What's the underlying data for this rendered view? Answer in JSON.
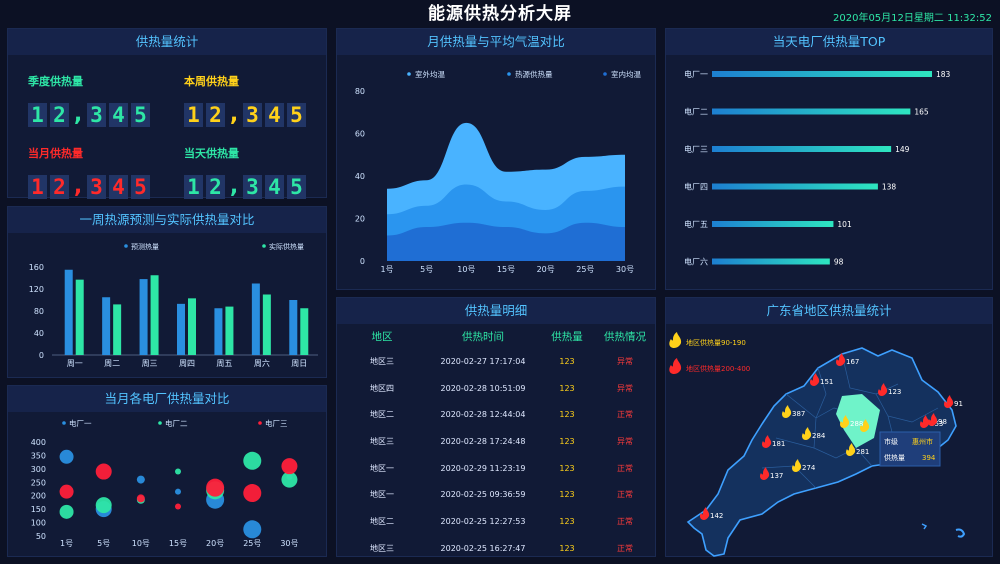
{
  "header": {
    "title": "能源供热分析大屏",
    "datetime": "2020年05月12日星期二 11:32:52"
  },
  "stats": {
    "title": "供热量统计",
    "items": [
      {
        "label": "季度供热量",
        "digits": [
          "1",
          "2",
          ",",
          "3",
          "4",
          "5"
        ],
        "color": "#2ee6a6",
        "digit_color": "#2ee6a6"
      },
      {
        "label": "本周供热量",
        "digits": [
          "1",
          "2",
          ",",
          "3",
          "4",
          "5"
        ],
        "color": "#ffd11a",
        "digit_color": "#ffd11a"
      },
      {
        "label": "当月供热量",
        "digits": [
          "1",
          "2",
          ",",
          "3",
          "4",
          "5"
        ],
        "color": "#ff2a2a",
        "digit_color": "#ff2a2a"
      },
      {
        "label": "当天供热量",
        "digits": [
          "1",
          "2",
          ",",
          "3",
          "4",
          "5"
        ],
        "color": "#2ee6a6",
        "digit_color": "#2ee6a6"
      }
    ]
  },
  "weekly": {
    "title": "一周热源预测与实际供热量对比"
  },
  "monthly_plant": {
    "title": "当月各电厂供热量对比"
  },
  "area": {
    "title": "月供热量与平均气温对比"
  },
  "top": {
    "title": "当天电厂供热量TOP"
  },
  "detail": {
    "title": "供热量明细",
    "headers": [
      "地区",
      "供热时间",
      "供热量",
      "供热情况"
    ],
    "rows": [
      [
        "地区三",
        "2020-02-27 17:17:04",
        "123",
        "异常"
      ],
      [
        "地区四",
        "2020-02-28 10:51:09",
        "123",
        "异常"
      ],
      [
        "地区二",
        "2020-02-28 12:44:04",
        "123",
        "正常"
      ],
      [
        "地区三",
        "2020-02-28 17:24:48",
        "123",
        "异常"
      ],
      [
        "地区一",
        "2020-02-29 11:23:19",
        "123",
        "正常"
      ],
      [
        "地区一",
        "2020-02-25 09:36:59",
        "123",
        "正常"
      ],
      [
        "地区二",
        "2020-02-25 12:27:53",
        "123",
        "正常"
      ],
      [
        "地区三",
        "2020-02-25 16:27:47",
        "123",
        "正常"
      ]
    ],
    "colors": {
      "normal": "#ff3b3b",
      "abnormal": "#ff3b3b",
      "value": "#ffd11a"
    }
  },
  "map": {
    "title": "广东省地区供热量统计",
    "legend": [
      {
        "label": "地区供热量90-190",
        "color": "#ffd11a",
        "icon": "flame-icon"
      },
      {
        "label": "地区供热量200-400",
        "color": "#ff2a2a",
        "icon": "flame-icon"
      }
    ],
    "tooltip": {
      "k1": "市级",
      "v1": "惠州市",
      "k2": "供热量",
      "v2": "394"
    },
    "markers": [
      {
        "v": "167",
        "c": "#ff2a2a"
      },
      {
        "v": "151",
        "c": "#ff2a2a"
      },
      {
        "v": "123",
        "c": "#ff2a2a"
      },
      {
        "v": "387",
        "c": "#ffd11a"
      },
      {
        "v": "288",
        "c": "#ffd11a"
      },
      {
        "v": "91",
        "c": "#ff2a2a"
      },
      {
        "v": "353",
        "c": "#ff2a2a"
      },
      {
        "v": "98",
        "c": "#ff2a2a"
      },
      {
        "v": "284",
        "c": "#ffd11a"
      },
      {
        "v": "181",
        "c": "#ff2a2a"
      },
      {
        "v": "274",
        "c": "#ffd11a"
      },
      {
        "v": "137",
        "c": "#ff2a2a"
      },
      {
        "v": "281",
        "c": "#ffd11a"
      },
      {
        "v": "142",
        "c": "#ff2a2a"
      },
      {
        "v": "394",
        "c": "#ffd11a"
      }
    ]
  },
  "chart_data": [
    {
      "type": "bar",
      "title": "一周热源预测与实际供热量对比",
      "categories": [
        "周一",
        "周二",
        "周三",
        "周四",
        "周五",
        "周六",
        "周日"
      ],
      "series": [
        {
          "name": "预测热量",
          "color": "#2a8fe0",
          "values": [
            155,
            105,
            138,
            93,
            85,
            130,
            100
          ]
        },
        {
          "name": "实际供热量",
          "color": "#2ee6a6",
          "values": [
            137,
            92,
            145,
            103,
            88,
            110,
            85
          ]
        }
      ],
      "ylim": [
        0,
        160
      ],
      "yticks": [
        0,
        40,
        80,
        120,
        160
      ],
      "legend_position": "top"
    },
    {
      "type": "scatter",
      "title": "当月各电厂供热量对比",
      "categories": [
        "1号",
        "5号",
        "10号",
        "15号",
        "20号",
        "25号",
        "30号"
      ],
      "series": [
        {
          "name": "电厂一",
          "color": "#2a8fe0",
          "values": [
            345,
            150,
            260,
            215,
            185,
            75,
            270
          ],
          "sizes": [
            12,
            14,
            6,
            4,
            16,
            16,
            4
          ]
        },
        {
          "name": "电厂二",
          "color": "#2ee6a6",
          "values": [
            140,
            165,
            185,
            290,
            220,
            330,
            260
          ],
          "sizes": [
            12,
            14,
            6,
            4,
            16,
            16,
            14
          ]
        },
        {
          "name": "电厂三",
          "color": "#ff1f3a",
          "values": [
            215,
            290,
            190,
            160,
            230,
            210,
            310
          ],
          "sizes": [
            12,
            14,
            6,
            4,
            16,
            16,
            14
          ]
        }
      ],
      "ylim": [
        50,
        400
      ],
      "yticks": [
        50,
        100,
        150,
        200,
        250,
        300,
        350,
        400
      ],
      "legend_position": "top"
    },
    {
      "type": "area",
      "title": "月供热量与平均气温对比",
      "x": [
        "1号",
        "5号",
        "10号",
        "15号",
        "20号",
        "25号",
        "30号"
      ],
      "series": [
        {
          "name": "室外均温",
          "color": "#49b3ff",
          "values": [
            34,
            38,
            65,
            42,
            43,
            49,
            50
          ]
        },
        {
          "name": "热源供热量",
          "color": "#2a95ef",
          "values": [
            22,
            26,
            36,
            28,
            24,
            33,
            35
          ]
        },
        {
          "name": "室内均温",
          "color": "#1f6ed4",
          "values": [
            12,
            16,
            18,
            16,
            13,
            18,
            16
          ]
        }
      ],
      "ylim": [
        0,
        80
      ],
      "yticks": [
        0,
        20,
        40,
        60,
        80
      ],
      "legend_position": "top"
    },
    {
      "type": "bar",
      "title": "当天电厂供热量TOP",
      "categories": [
        "电厂一",
        "电厂二",
        "电厂三",
        "电厂四",
        "电厂五",
        "电厂六"
      ],
      "values": [
        183,
        165,
        149,
        138,
        101,
        98
      ],
      "orientation": "horizontal"
    }
  ]
}
